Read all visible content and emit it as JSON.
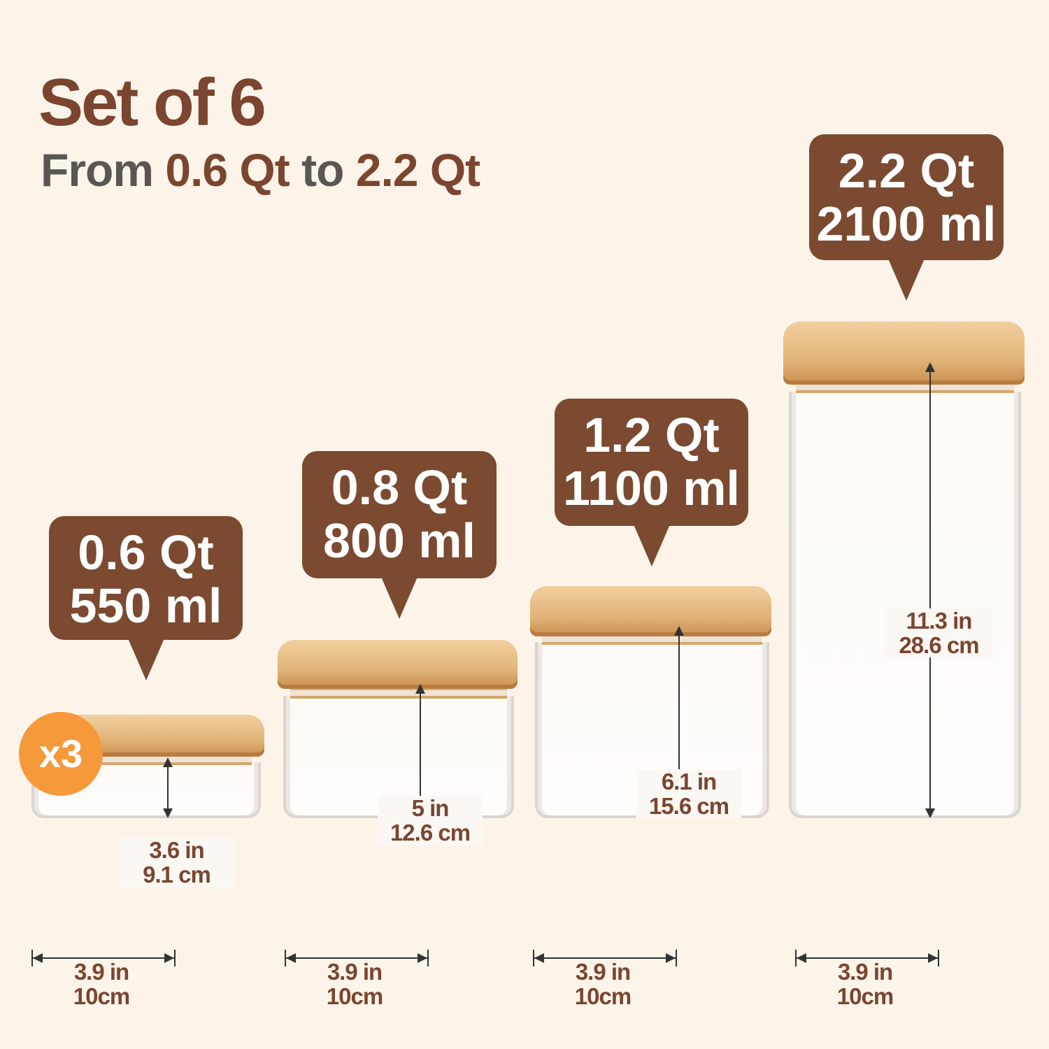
{
  "title": "Set of 6",
  "subtitle": {
    "from": "From",
    "min": "0.6 Qt",
    "to": "to",
    "max": "2.2 Qt"
  },
  "badge": "x3",
  "colors": {
    "background": "#fdf4e9",
    "brand_brown": "#7b4a30",
    "badge_orange": "#f5993a",
    "subtitle_gray": "#5a5654"
  },
  "jars": [
    {
      "qt": "0.6 Qt",
      "ml": "550 ml",
      "height_in": "3.6 in",
      "height_cm": "9.1 cm",
      "width_in": "3.9 in",
      "width_cm": "10cm"
    },
    {
      "qt": "0.8 Qt",
      "ml": "800 ml",
      "height_in": "5 in",
      "height_cm": "12.6 cm",
      "width_in": "3.9 in",
      "width_cm": "10cm"
    },
    {
      "qt": "1.2 Qt",
      "ml": "1100 ml",
      "height_in": "6.1 in",
      "height_cm": "15.6 cm",
      "width_in": "3.9 in",
      "width_cm": "10cm"
    },
    {
      "qt": "2.2 Qt",
      "ml": "2100 ml",
      "height_in": "11.3 in",
      "height_cm": "28.6 cm",
      "width_in": "3.9 in",
      "width_cm": "10cm"
    }
  ]
}
